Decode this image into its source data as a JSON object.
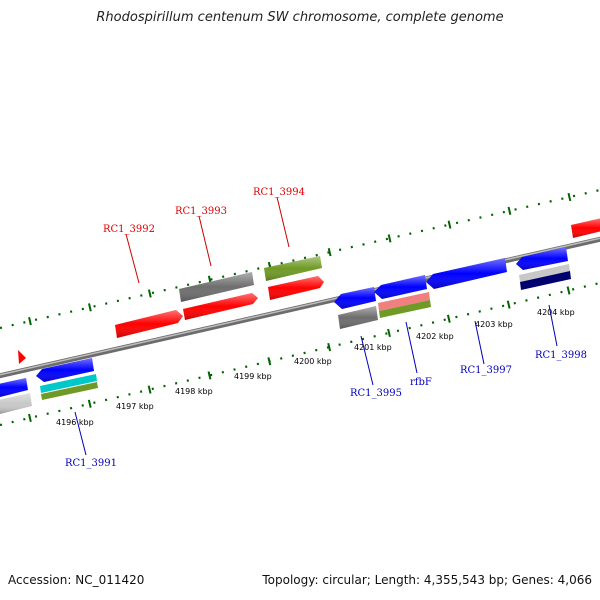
{
  "title": "Rhodospirillum centenum SW chromosome, complete genome",
  "footer": {
    "accession": "Accession: NC_011420",
    "stats": "Topology: circular; Length: 4,355,543 bp; Genes: 4,066"
  },
  "colors": {
    "red": "#ff0000",
    "blue": "#0000ff",
    "green": "#6f9a25",
    "gray": "#6e6e6e",
    "cyan": "#00c8c8",
    "pink": "#f08080",
    "navy": "#00006e",
    "lightgray": "#c8c8c8",
    "tick": "#006400",
    "backbone": "#808080",
    "label_red": "#dd0000",
    "label_blue": "#0000bb"
  },
  "kbp_labels": [
    "4196 kbp",
    "4197 kbp",
    "4198 kbp",
    "4199 kbp",
    "4200 kbp",
    "4201 kbp",
    "4202 kbp",
    "4203 kbp",
    "4204 kbp"
  ],
  "gene_labels_top": [
    "RC1_3992",
    "RC1_3993",
    "RC1_3994"
  ],
  "gene_labels_bottom": [
    "RC1_3991",
    "RC1_3995",
    "rfbF",
    "RC1_3997",
    "RC1_3998"
  ]
}
